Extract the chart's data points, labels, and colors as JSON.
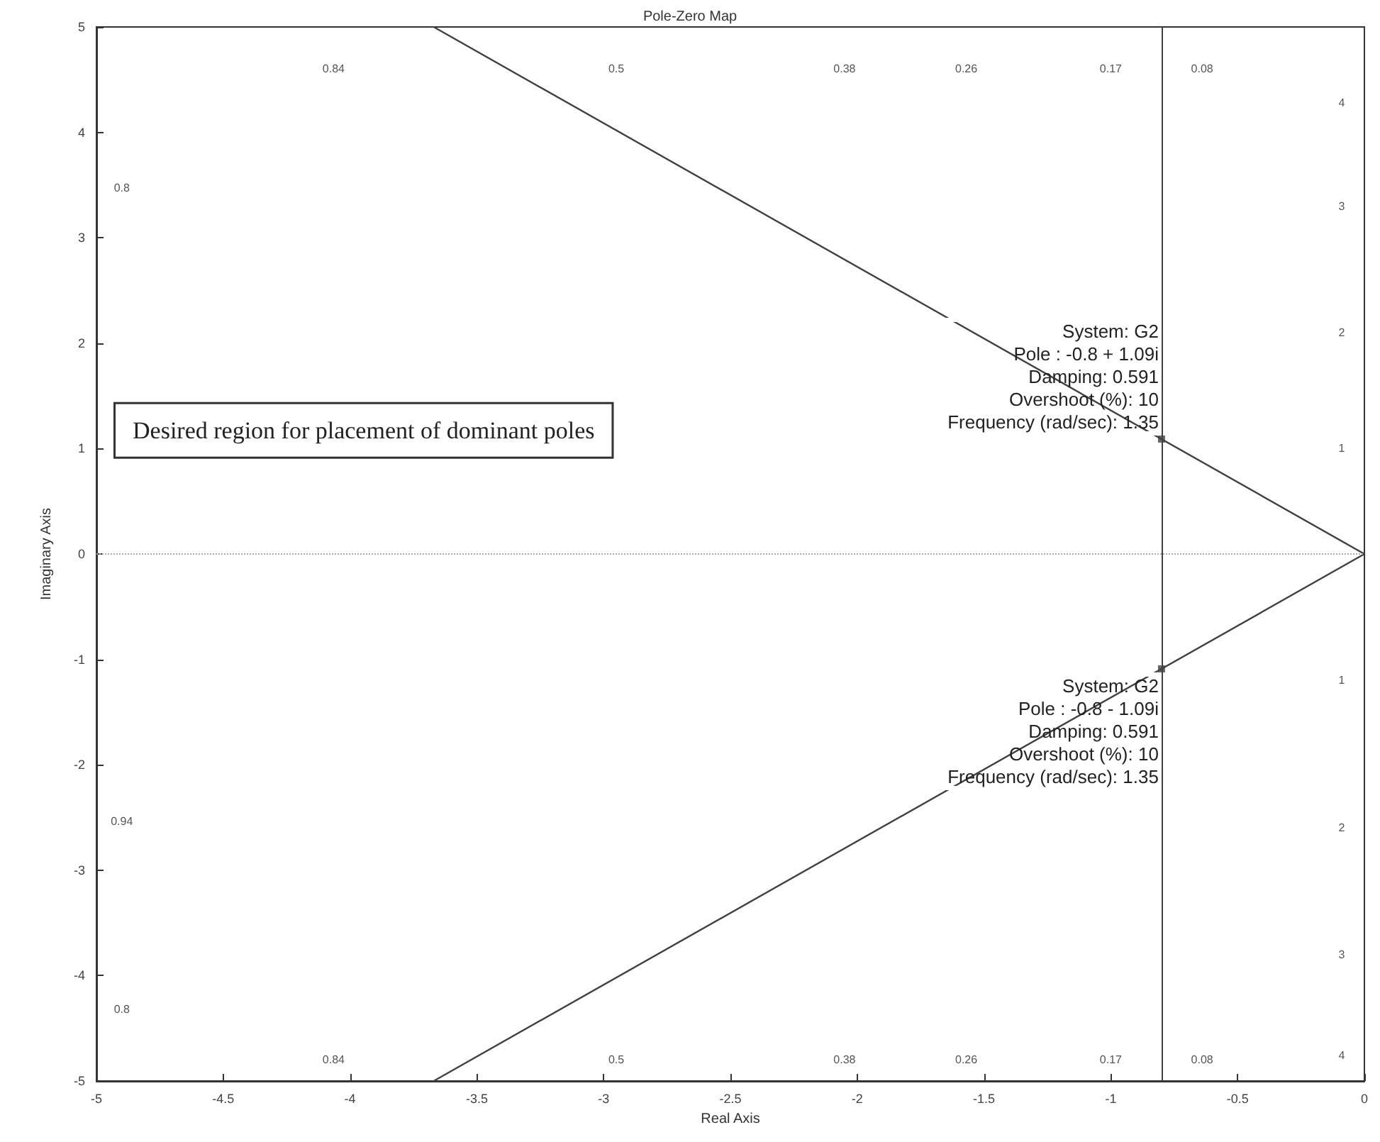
{
  "chart_data": {
    "type": "line",
    "title": "Pole-Zero Map",
    "xlabel": "Real Axis",
    "ylabel": "Imaginary Axis",
    "xlim": [
      -5,
      0
    ],
    "ylim": [
      -5,
      5
    ],
    "xticks": [
      -5,
      -4.5,
      -4,
      -3.5,
      -3,
      -2.5,
      -2,
      -1.5,
      -1,
      -0.5,
      0
    ],
    "yticks": [
      -5,
      -4,
      -3,
      -2,
      -1,
      0,
      1,
      2,
      3,
      4,
      5
    ],
    "grid": false,
    "line_style": "solid",
    "marker": "none",
    "series": [
      {
        "x": [
          0,
          -3.67
        ],
        "values": [
          0,
          5
        ],
        "color": "#404040"
      },
      {
        "x": [
          0,
          -3.67
        ],
        "values": [
          0,
          -5
        ],
        "color": "#404040"
      },
      {
        "type": "scatter",
        "marker": "square",
        "x": [
          -0.8,
          -0.8
        ],
        "values": [
          1.09,
          -1.09
        ],
        "color": "#404040"
      }
    ],
    "ref_lines": [
      {
        "axis": "x",
        "value": -0.8,
        "color": "#404040",
        "line_style": "solid"
      },
      {
        "axis": "y",
        "value": 0,
        "color": "#aaaaaa",
        "line_style": "dotted"
      }
    ],
    "annotations": [
      "Desired region for placement of dominant poles",
      {
        "text": "System: G2\nPole : -0.8 + 1.09i\nDamping: 0.591\nOvershoot (%): 10\nFrequency (rad/sec): 1.35",
        "x": -0.8,
        "y": 1.09
      },
      {
        "text": "System: G2\nPole : -0.8 - 1.09i\nDamping: 0.591\nOvershoot (%): 10\nFrequency (rad/sec): 1.35",
        "x": -0.8,
        "y": -1.09
      },
      "0.84",
      "0.5",
      "0.38",
      "0.26",
      "0.17",
      "0.08",
      "0.84",
      "0.5",
      "0.38",
      "0.26",
      "0.17",
      "0.08",
      "0.8",
      "0.94",
      "0.8",
      "4",
      "3",
      "2",
      "1",
      "1",
      "2",
      "3",
      "4"
    ]
  }
}
